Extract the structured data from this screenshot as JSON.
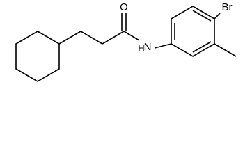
{
  "atoms": {
    "oxygen": "O",
    "nitrogen": "N",
    "hydrogen": "H",
    "bromine": "Br"
  }
}
